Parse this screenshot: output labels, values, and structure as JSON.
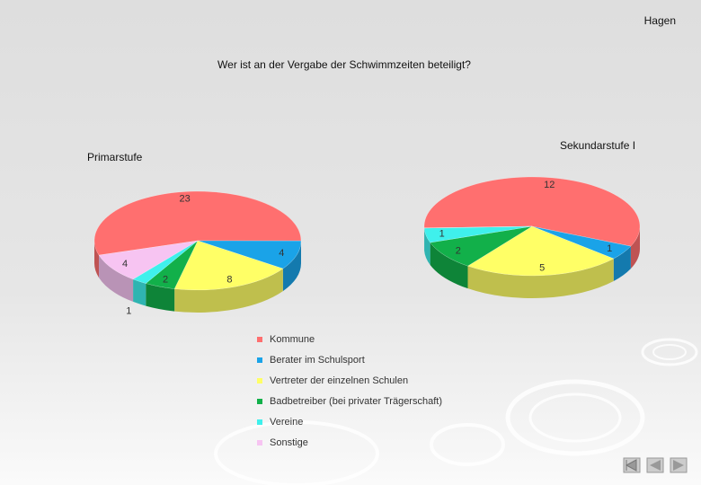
{
  "header": "Hagen",
  "title": "Wer ist an der Vergabe der Schwimmzeiten beteiligt?",
  "chart_data": [
    {
      "type": "pie",
      "subtitle": "Primarstufe",
      "categories": [
        "Kommune",
        "Berater im Schulsport",
        "Vertreter der einzelnen Schulen",
        "Badbetreiber (bei privater Trägerschaft)",
        "Vereine",
        "Sonstige"
      ],
      "values": [
        23,
        4,
        8,
        2,
        1,
        4
      ],
      "colors": [
        "#ff6f6f",
        "#1aa3e8",
        "#ffff66",
        "#12b04a",
        "#3ff0ec",
        "#f7c4f2"
      ]
    },
    {
      "type": "pie",
      "subtitle": "Sekundarstufe I",
      "categories": [
        "Kommune",
        "Berater im Schulsport",
        "Vertreter der einzelnen Schulen",
        "Badbetreiber (bei privater Trägerschaft)",
        "Vereine",
        "Sonstige"
      ],
      "values": [
        12,
        1,
        5,
        2,
        1,
        0
      ],
      "colors": [
        "#ff6f6f",
        "#1aa3e8",
        "#ffff66",
        "#12b04a",
        "#3ff0ec",
        "#f7c4f2"
      ]
    }
  ]
}
